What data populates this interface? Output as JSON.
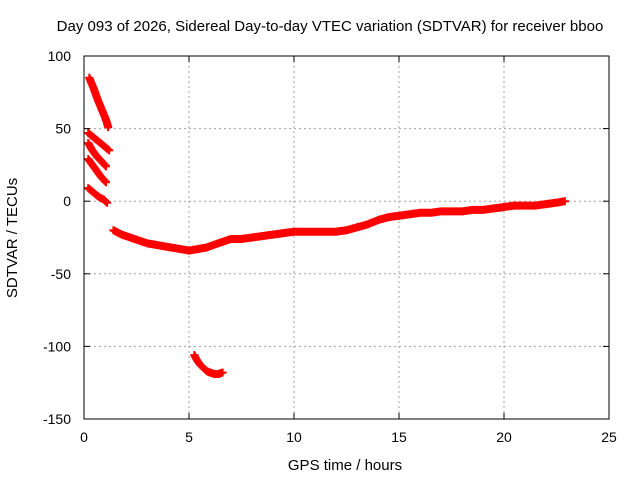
{
  "chart_data": {
    "type": "scatter",
    "title": "Day 093 of 2026, Sidereal Day-to-day VTEC variation (SDTVAR) for receiver bboo",
    "xlabel": "GPS time / hours",
    "ylabel": "SDTVAR / TECUs",
    "xlim": [
      0,
      25
    ],
    "ylim": [
      -150,
      100
    ],
    "xticks": [
      0,
      5,
      10,
      15,
      20,
      25
    ],
    "yticks": [
      -150,
      -100,
      -50,
      0,
      50,
      100
    ],
    "xtick_labels": [
      "0",
      "5",
      "10",
      "15",
      "20",
      "25"
    ],
    "ytick_labels": [
      "-150",
      "-100",
      "-50",
      "0",
      "50",
      "100"
    ],
    "grid": true,
    "marker": "plus",
    "series": [
      {
        "name": "SDTVAR",
        "color": "#ff0000",
        "segments": [
          {
            "x": [
              0.25,
              0.45,
              0.65,
              0.85,
              1.05,
              1.15
            ],
            "y": [
              85,
              78,
              70,
              63,
              56,
              51
            ]
          },
          {
            "x": [
              0.2,
              0.45,
              0.7,
              0.95,
              1.2
            ],
            "y": [
              47,
              44,
              41,
              38,
              35
            ]
          },
          {
            "x": [
              0.2,
              0.4,
              0.6,
              0.8,
              1.05
            ],
            "y": [
              40,
              35,
              31,
              28,
              24
            ]
          },
          {
            "x": [
              0.2,
              0.4,
              0.6,
              0.8,
              1.05
            ],
            "y": [
              29,
              25,
              21,
              17,
              13
            ]
          },
          {
            "x": [
              0.2,
              0.45,
              0.7,
              0.95,
              1.1
            ],
            "y": [
              9,
              6,
              3,
              1,
              -1
            ]
          },
          {
            "x": [
              1.4,
              1.8,
              2.2,
              2.6,
              3.0,
              3.4,
              3.8,
              4.2,
              4.6,
              5.0,
              5.4,
              5.8,
              6.2,
              6.6,
              7.0,
              7.5,
              8.0,
              8.5,
              9.0,
              9.5,
              10.0,
              10.5,
              11.0,
              11.5,
              12.0,
              12.5,
              13.0,
              13.5,
              14.0,
              14.5,
              15.0,
              15.5,
              16.0,
              16.5,
              17.0,
              17.5,
              18.0,
              18.5,
              19.0,
              19.5,
              20.0,
              20.5,
              21.0,
              21.5,
              22.0,
              22.5,
              22.9
            ],
            "y": [
              -20,
              -23,
              -25,
              -27,
              -29,
              -30,
              -31,
              -32,
              -33,
              -34,
              -33,
              -32,
              -30,
              -28,
              -26,
              -26,
              -25,
              -24,
              -23,
              -22,
              -21,
              -21,
              -21,
              -21,
              -21,
              -20,
              -18,
              -16,
              -13,
              -11,
              -10,
              -9,
              -8,
              -8,
              -7,
              -7,
              -7,
              -6,
              -6,
              -5,
              -4,
              -3,
              -3,
              -3,
              -2,
              -1,
              0
            ]
          },
          {
            "x": [
              5.25,
              5.4,
              5.55,
              5.7,
              5.85,
              6.0,
              6.2,
              6.4,
              6.6
            ],
            "y": [
              -106,
              -110,
              -113,
              -115,
              -117,
              -118,
              -119,
              -119,
              -118
            ]
          }
        ]
      }
    ]
  }
}
